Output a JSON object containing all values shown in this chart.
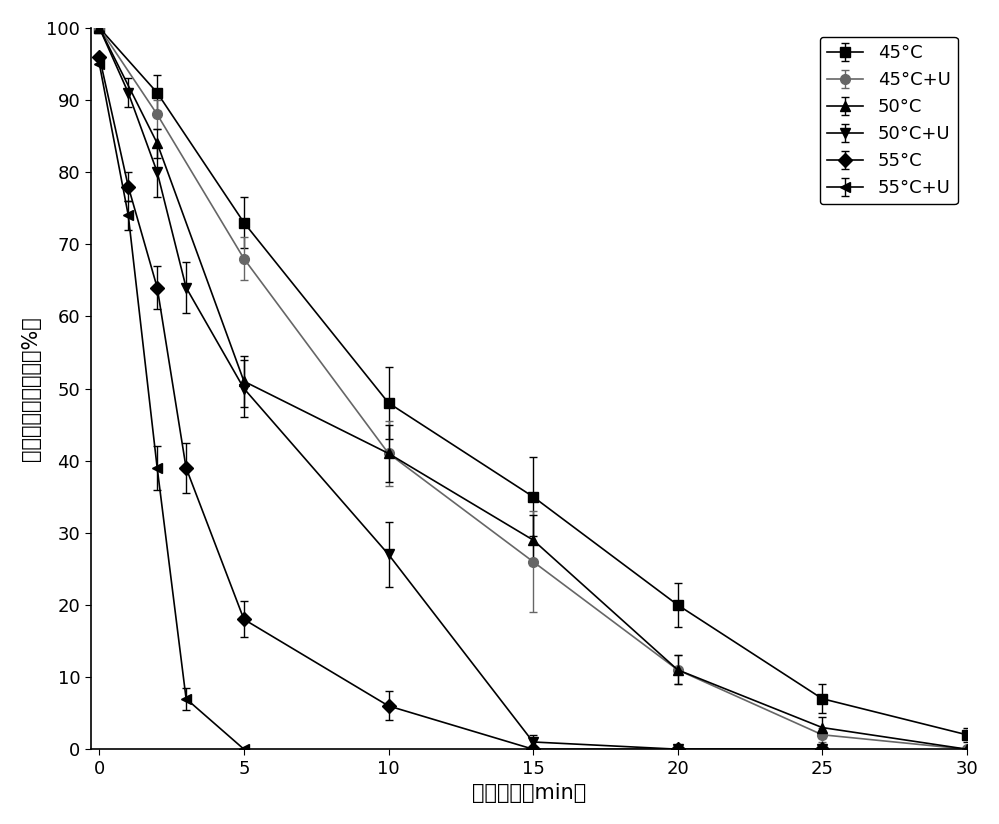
{
  "title": "",
  "xlabel": "处理时间（min）",
  "ylabel": "钓蛋白酯相对活力（%）",
  "xlim": [
    -0.3,
    30
  ],
  "ylim": [
    0,
    100
  ],
  "xticks": [
    0,
    5,
    10,
    15,
    20,
    25,
    30
  ],
  "yticks": [
    0,
    10,
    20,
    30,
    40,
    50,
    60,
    70,
    80,
    90,
    100
  ],
  "series": [
    {
      "label": "45°C",
      "x": [
        0,
        2,
        5,
        10,
        15,
        20,
        25,
        30
      ],
      "y": [
        100,
        91,
        73,
        48,
        35,
        20,
        7,
        2
      ],
      "yerr": [
        0,
        2.5,
        3.5,
        5.0,
        5.5,
        3.0,
        2.0,
        1.0
      ],
      "marker": "s",
      "color": "#000000",
      "linestyle": "-"
    },
    {
      "label": "45°C+U",
      "x": [
        0,
        2,
        5,
        10,
        15,
        20,
        25,
        30
      ],
      "y": [
        100,
        88,
        68,
        41,
        26,
        11,
        2,
        0
      ],
      "yerr": [
        0,
        2.0,
        3.0,
        4.5,
        7.0,
        2.0,
        1.0,
        0
      ],
      "marker": "o",
      "color": "#666666",
      "linestyle": "-"
    },
    {
      "label": "50°C",
      "x": [
        0,
        2,
        5,
        10,
        15,
        20,
        25,
        30
      ],
      "y": [
        100,
        84,
        51,
        41,
        29,
        11,
        3,
        0
      ],
      "yerr": [
        0,
        2.0,
        3.5,
        4.0,
        3.5,
        2.0,
        1.5,
        0
      ],
      "marker": "^",
      "color": "#000000",
      "linestyle": "-"
    },
    {
      "label": "50°C+U",
      "x": [
        0,
        1,
        2,
        3,
        5,
        10,
        15,
        20,
        25
      ],
      "y": [
        100,
        91,
        80,
        64,
        50,
        27,
        1,
        0,
        0
      ],
      "yerr": [
        0,
        2.0,
        3.5,
        3.5,
        4.0,
        4.5,
        1.0,
        0,
        0
      ],
      "marker": "v",
      "color": "#000000",
      "linestyle": "-"
    },
    {
      "label": "55°C",
      "x": [
        0,
        1,
        2,
        3,
        5,
        10,
        15,
        20,
        25
      ],
      "y": [
        96,
        78,
        64,
        39,
        18,
        6,
        0,
        0,
        0
      ],
      "yerr": [
        0,
        2.0,
        3.0,
        3.5,
        2.5,
        2.0,
        0,
        0,
        0
      ],
      "marker": "D",
      "color": "#000000",
      "linestyle": "-"
    },
    {
      "label": "55°C+U",
      "x": [
        0,
        1,
        2,
        3,
        5
      ],
      "y": [
        95,
        74,
        39,
        7,
        0
      ],
      "yerr": [
        0,
        2.0,
        3.0,
        1.5,
        0
      ],
      "marker": "<",
      "color": "#000000",
      "linestyle": "-"
    }
  ],
  "legend_loc": "upper right",
  "markersize": 7,
  "linewidth": 1.2,
  "font_size": 15,
  "tick_font_size": 13,
  "legend_font_size": 13
}
